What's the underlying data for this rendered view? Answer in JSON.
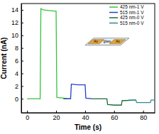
{
  "chart_data": {
    "type": "line",
    "x_label": "Time (s)",
    "y_label": "Current (nA)",
    "xlim": [
      -4,
      88
    ],
    "xticks": [
      0,
      20,
      40,
      60,
      80
    ],
    "ylim": [
      -2.2,
      15
    ],
    "yticks": [
      0,
      2,
      4,
      6,
      8,
      10,
      12,
      14
    ],
    "legend": "upper right",
    "annotations": [
      "Au",
      "glass",
      "Au"
    ],
    "series": [
      {
        "name": "425 nm-1 V",
        "color": "#35c43a",
        "x": [
          0,
          9,
          9.5,
          11,
          15,
          20,
          20.5,
          30
        ],
        "values": [
          0,
          0,
          14.2,
          14.0,
          13.9,
          13.8,
          0.2,
          0
        ]
      },
      {
        "name": "515 nm-1 V",
        "color": "#2140c8",
        "x": [
          25,
          30,
          30.5,
          35,
          40,
          40.5,
          45
        ],
        "values": [
          0,
          0,
          2.3,
          2.2,
          2.2,
          0.1,
          0
        ]
      },
      {
        "name": "425 nm-0 V",
        "color": "#1b6b3a",
        "x": [
          45,
          55,
          55.5,
          60,
          65,
          65.5,
          75
        ],
        "values": [
          0,
          0,
          -0.9,
          -1.0,
          -1.0,
          -0.3,
          -0.2
        ]
      },
      {
        "name": "515 nm-0 V",
        "color": "#2e8a8c",
        "x": [
          70,
          75,
          75.5,
          80,
          85,
          85.5,
          88
        ],
        "values": [
          -0.2,
          -0.2,
          -0.6,
          -0.6,
          -0.6,
          -0.2,
          -0.2
        ]
      }
    ]
  }
}
